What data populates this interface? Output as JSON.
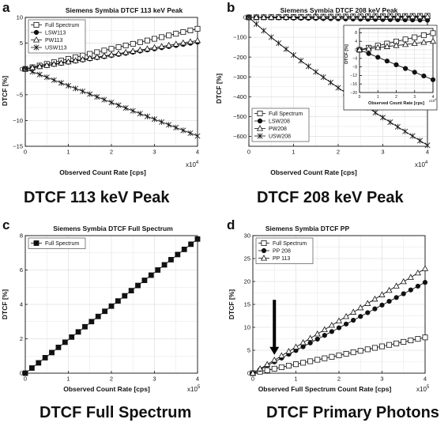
{
  "chart_data": [
    {
      "panel_letter": "a",
      "type": "line",
      "title": "Siemens Symbia DTCF 113 keV Peak",
      "caption": "DTCF 113 keV Peak",
      "xlabel": "Observed Count Rate [cps]",
      "ylabel": "DTCF [%]",
      "x_multiplier": "x10",
      "x_exponent": "4",
      "xlim": [
        0,
        4
      ],
      "ylim": [
        -15,
        10
      ],
      "xticks": [
        0,
        1,
        2,
        3,
        4
      ],
      "yticks": [
        -15,
        -10,
        -5,
        0,
        5,
        10
      ],
      "grid": true,
      "legend": "top-left",
      "series": [
        {
          "name": "Full Spectrum",
          "marker": "square-open",
          "x": [
            0,
            4
          ],
          "y": [
            0,
            7.8
          ]
        },
        {
          "name": "LSW113",
          "marker": "circle-filled",
          "x": [
            0,
            4
          ],
          "y": [
            0,
            5.2
          ]
        },
        {
          "name": "PW113",
          "marker": "triangle-open",
          "x": [
            0,
            4
          ],
          "y": [
            0,
            5.5
          ]
        },
        {
          "name": "USW113",
          "marker": "star",
          "x": [
            0,
            4
          ],
          "y": [
            0,
            -13
          ]
        }
      ]
    },
    {
      "panel_letter": "b",
      "type": "line",
      "title": "Siemens Symbia DTCF 208 keV Peak",
      "caption": "DTCF 208 keV Peak",
      "xlabel": "Observed Count Rate [cps]",
      "ylabel": "DTCF [%]",
      "x_multiplier": "x10",
      "x_exponent": "4",
      "xlim": [
        0,
        4
      ],
      "ylim": [
        -650,
        0
      ],
      "xticks": [
        0,
        1,
        2,
        3,
        4
      ],
      "yticks": [
        -600,
        -500,
        -400,
        -300,
        -200,
        -100,
        0
      ],
      "grid": true,
      "legend": "bottom-left",
      "series": [
        {
          "name": "Full Spectrum",
          "marker": "square-open",
          "x": [
            0,
            4
          ],
          "y": [
            0,
            7.8
          ]
        },
        {
          "name": "LSW208",
          "marker": "circle-filled",
          "x": [
            0,
            4
          ],
          "y": [
            0,
            -14
          ]
        },
        {
          "name": "PW208",
          "marker": "triangle-open",
          "x": [
            0,
            4
          ],
          "y": [
            0,
            4
          ]
        },
        {
          "name": "USW208",
          "marker": "star",
          "x": [
            0,
            0.5,
            1,
            1.5,
            2,
            2.5,
            3,
            3.5,
            4
          ],
          "y": [
            0,
            -100,
            -190,
            -275,
            -355,
            -430,
            -505,
            -575,
            -645
          ]
        }
      ],
      "inset": {
        "xlabel": "Observed Count Rate [cps]",
        "ylabel": "DTCF [%]",
        "x_multiplier": "x10",
        "x_exponent": "4",
        "xlim": [
          0,
          4
        ],
        "ylim": [
          -20,
          10
        ],
        "xticks": [
          0,
          1,
          2,
          3,
          4
        ],
        "yticks": [
          -20,
          -16,
          -12,
          -8,
          -4,
          0,
          4,
          8
        ]
      }
    },
    {
      "panel_letter": "c",
      "type": "line",
      "title": "Siemens Symbia DTCF Full Spectrum",
      "caption": "DTCF Full Spectrum",
      "xlabel": "Observed Count Rate [cps]",
      "ylabel": "DTCF [%]",
      "x_multiplier": "x10",
      "x_exponent": "5",
      "xlim": [
        0,
        4
      ],
      "ylim": [
        0,
        8
      ],
      "xticks": [
        0,
        1,
        2,
        3,
        4
      ],
      "yticks": [
        0,
        2,
        4,
        6,
        8
      ],
      "grid": true,
      "legend": "top-left",
      "series": [
        {
          "name": "Full Spectrum",
          "marker": "square-filled",
          "x": [
            0,
            4
          ],
          "y": [
            0,
            7.8
          ]
        }
      ]
    },
    {
      "panel_letter": "d",
      "type": "line",
      "title": "Siemens Symbia DTCF PP",
      "caption": "DTCF Primary Photons",
      "xlabel": "Observed Full Spectrum  Count Rate [cps]",
      "ylabel": "DTCF [%]",
      "x_multiplier": "x10",
      "x_exponent": "5",
      "xlim": [
        0,
        4
      ],
      "ylim": [
        0,
        30
      ],
      "xticks": [
        0,
        1,
        2,
        3,
        4
      ],
      "yticks": [
        0,
        5,
        10,
        15,
        20,
        25,
        30
      ],
      "grid": true,
      "legend": "top-left",
      "annotation": {
        "type": "arrow-down",
        "x": 0.5,
        "y_from": 16,
        "y_to": 4
      },
      "series": [
        {
          "name": "Full Spectrum",
          "marker": "square-open",
          "x": [
            0,
            4
          ],
          "y": [
            0,
            7.8
          ]
        },
        {
          "name": "PP 208",
          "marker": "circle-filled",
          "x": [
            0,
            4
          ],
          "y": [
            0,
            19.8
          ]
        },
        {
          "name": "PP 113",
          "marker": "triangle-open",
          "x": [
            0,
            4
          ],
          "y": [
            0,
            22.8
          ]
        }
      ]
    }
  ]
}
